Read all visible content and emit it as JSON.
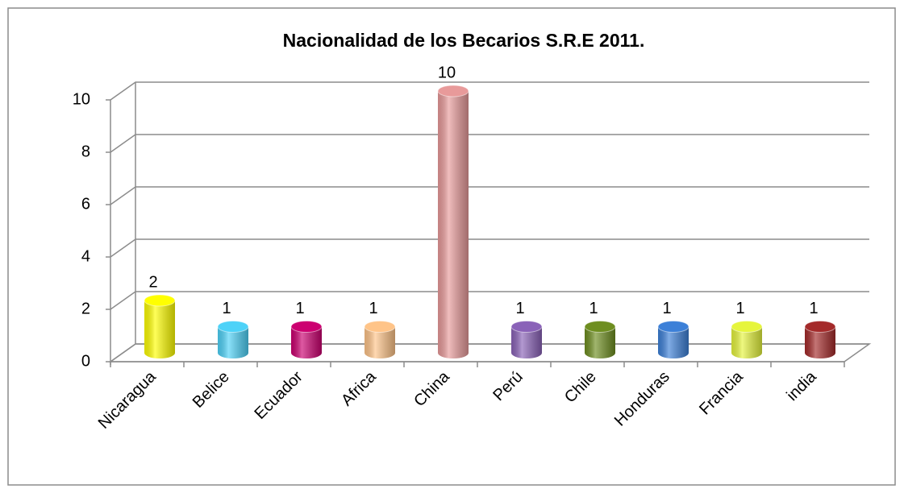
{
  "chart_data": {
    "type": "bar",
    "title": "Nacionalidad de los Becarios S.R.E 2011.",
    "categories": [
      "Nicaragua",
      "Belice",
      "Ecuador",
      "Africa",
      "China",
      "Perú",
      "Chile",
      "Honduras",
      "Francia",
      "india"
    ],
    "values": [
      2,
      1,
      1,
      1,
      10,
      1,
      1,
      1,
      1,
      1
    ],
    "colors": [
      "#ffff00",
      "#4dd2f8",
      "#cc0070",
      "#ffc488",
      "#e89a9a",
      "#8a62b8",
      "#6e8e20",
      "#3c80d8",
      "#e6f53c",
      "#a42a2a"
    ],
    "ylim": [
      0,
      10
    ],
    "yticks": [
      0,
      2,
      4,
      6,
      8,
      10
    ],
    "grid": true
  }
}
